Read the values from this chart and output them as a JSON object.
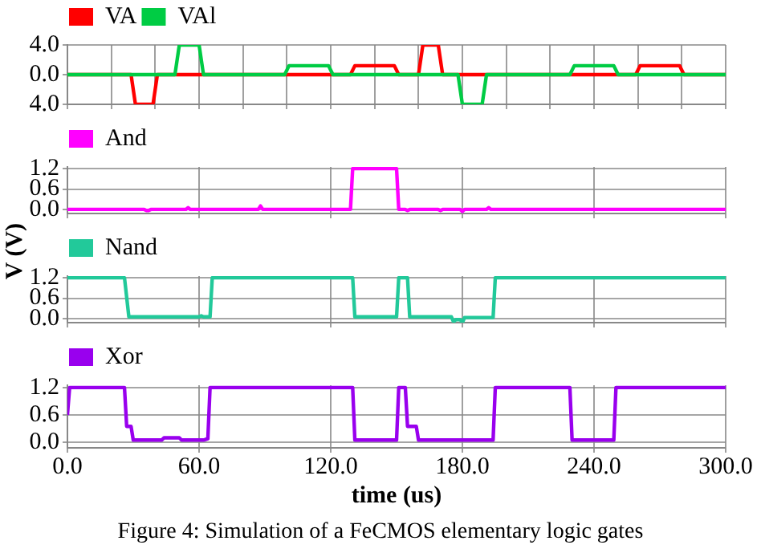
{
  "chart_data": [
    {
      "type": "line",
      "xlim": [
        0,
        300
      ],
      "xticks": [
        {
          "value": 0,
          "label": null
        },
        {
          "value": 20,
          "label": null
        },
        {
          "value": 40,
          "label": null
        },
        {
          "value": 60,
          "label": null
        },
        {
          "value": 80,
          "label": null
        },
        {
          "value": 100,
          "label": null
        },
        {
          "value": 120,
          "label": null
        },
        {
          "value": 140,
          "label": null
        },
        {
          "value": 160,
          "label": null
        },
        {
          "value": 180,
          "label": null
        },
        {
          "value": 200,
          "label": null
        },
        {
          "value": 220,
          "label": null
        },
        {
          "value": 240,
          "label": null
        },
        {
          "value": 260,
          "label": null
        },
        {
          "value": 280,
          "label": null
        },
        {
          "value": 300,
          "label": null
        }
      ],
      "ylim": [
        -4,
        4
      ],
      "yticks": [
        {
          "value": -4,
          "label": "4.0"
        },
        {
          "value": 0,
          "label": "0.0"
        },
        {
          "value": 4,
          "label": "4.0"
        }
      ],
      "grid": true,
      "legend": "top left",
      "marker": "none",
      "tick_labels": "y",
      "series": [
        {
          "name": "VA",
          "color": "#ff0000",
          "x": [
            0,
            29,
            31,
            39,
            41,
            129,
            131,
            149,
            151,
            160,
            162,
            169,
            171,
            259,
            261,
            279,
            281,
            300
          ],
          "values": [
            0,
            0,
            -4,
            -4,
            0,
            0,
            1.2,
            1.2,
            0,
            0,
            4,
            4,
            0,
            0,
            1.2,
            1.2,
            0,
            0
          ]
        },
        {
          "name": "VAl",
          "color": "#00cc44",
          "x": [
            0,
            49,
            51,
            60,
            62,
            99,
            101,
            119,
            121,
            178,
            180,
            189,
            191,
            229,
            231,
            249,
            251,
            300
          ],
          "values": [
            0,
            0,
            4,
            4,
            0,
            0,
            1.2,
            1.2,
            0,
            0,
            -4,
            -4,
            0,
            0,
            1.2,
            1.2,
            0,
            0
          ]
        }
      ]
    },
    {
      "type": "line",
      "xlim": [
        0,
        300
      ],
      "xticks": [
        {
          "value": 0,
          "label": null
        },
        {
          "value": 60,
          "label": null
        },
        {
          "value": 120,
          "label": null
        },
        {
          "value": 180,
          "label": null
        },
        {
          "value": 240,
          "label": null
        },
        {
          "value": 300,
          "label": null
        }
      ],
      "ylim": [
        -0.12,
        1.25
      ],
      "yticks": [
        {
          "value": 0,
          "label": "0.0"
        },
        {
          "value": 0.6,
          "label": "0.6"
        },
        {
          "value": 1.2,
          "label": "1.2"
        }
      ],
      "grid": true,
      "legend": "top left",
      "marker": "none",
      "tick_labels": "y",
      "ylabel": "V (V)",
      "series": [
        {
          "name": "And",
          "color": "#ff00ff",
          "x": [
            0,
            35,
            36,
            37,
            38,
            54,
            55,
            56,
            87,
            88,
            89,
            129,
            130,
            150,
            151,
            154,
            155,
            156,
            169,
            170,
            171,
            179,
            180,
            181,
            191,
            192,
            193,
            300
          ],
          "values": [
            0,
            0,
            -0.03,
            -0.03,
            0,
            0,
            0.05,
            0,
            0,
            0.1,
            0,
            0,
            1.2,
            1.2,
            0,
            0,
            -0.03,
            0,
            0,
            -0.03,
            0,
            0,
            -0.06,
            0,
            0,
            0.05,
            0,
            0
          ]
        }
      ]
    },
    {
      "type": "line",
      "xlim": [
        0,
        300
      ],
      "xticks": [
        {
          "value": 0,
          "label": null
        },
        {
          "value": 60,
          "label": null
        },
        {
          "value": 120,
          "label": null
        },
        {
          "value": 180,
          "label": null
        },
        {
          "value": 240,
          "label": null
        },
        {
          "value": 300,
          "label": null
        }
      ],
      "ylim": [
        -0.12,
        1.25
      ],
      "yticks": [
        {
          "value": 0,
          "label": "0.0"
        },
        {
          "value": 0.6,
          "label": "0.6"
        },
        {
          "value": 1.2,
          "label": "1.2"
        }
      ],
      "grid": true,
      "legend": "top left",
      "marker": "none",
      "tick_labels": "y",
      "series": [
        {
          "name": "Nand",
          "color": "#22c99a",
          "x": [
            0,
            26,
            28,
            60,
            61,
            62,
            65,
            66,
            130,
            131,
            150,
            151,
            152,
            155,
            156,
            175,
            176,
            177,
            179,
            180,
            181,
            194,
            195,
            300
          ],
          "values": [
            1.2,
            1.2,
            0.05,
            0.05,
            0.08,
            0.05,
            0.05,
            1.2,
            1.2,
            0.05,
            0.05,
            1.2,
            1.2,
            1.2,
            0.05,
            0.05,
            -0.1,
            -0.03,
            -0.03,
            -0.12,
            0.03,
            0.03,
            1.2,
            1.2
          ]
        }
      ]
    },
    {
      "type": "line",
      "xlim": [
        0,
        300
      ],
      "xticks": [
        {
          "value": 0,
          "label": "0.0"
        },
        {
          "value": 60,
          "label": "60.0"
        },
        {
          "value": 120,
          "label": "120.0"
        },
        {
          "value": 180,
          "label": "180.0"
        },
        {
          "value": 240,
          "label": "240.0"
        },
        {
          "value": 300,
          "label": "300.0"
        }
      ],
      "ylim": [
        -0.12,
        1.25
      ],
      "yticks": [
        {
          "value": 0,
          "label": "0.0"
        },
        {
          "value": 0.6,
          "label": "0.6"
        },
        {
          "value": 1.2,
          "label": "1.2"
        }
      ],
      "grid": true,
      "legend": "top left",
      "marker": "none",
      "xlabel": "time (us)",
      "annotations": [
        "Figure 4: Simulation of a FeCMOS elementary logic gates"
      ],
      "series": [
        {
          "name": "Xor",
          "color": "#9900ee",
          "x": [
            0,
            1,
            26,
            27,
            29,
            30,
            43,
            44,
            51,
            52,
            62,
            64,
            65,
            130,
            131,
            150,
            151,
            154,
            155,
            156,
            159,
            160,
            194,
            195,
            229,
            230,
            249,
            250,
            300
          ],
          "values": [
            0.6,
            1.2,
            1.2,
            0.35,
            0.35,
            0.05,
            0.05,
            0.1,
            0.1,
            0.05,
            0.05,
            0.08,
            1.2,
            1.2,
            0.05,
            0.05,
            1.2,
            1.2,
            0.35,
            0.35,
            0.35,
            0.05,
            0.05,
            1.2,
            1.2,
            0.05,
            0.05,
            1.2,
            1.2
          ]
        }
      ]
    }
  ]
}
